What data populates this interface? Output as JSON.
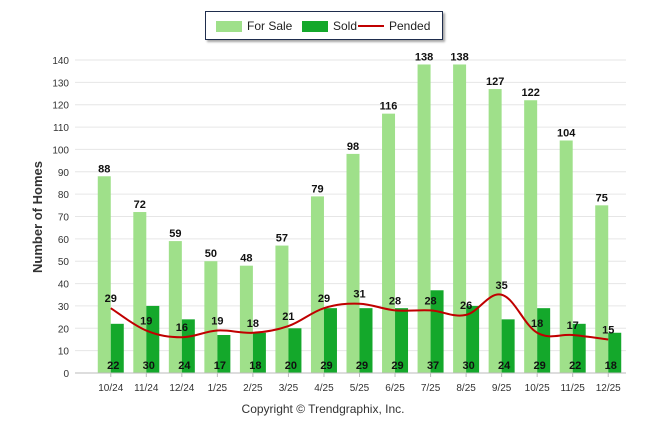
{
  "chart_data": {
    "type": "bar",
    "title": "",
    "xlabel": "",
    "ylabel": "Number of Homes",
    "ylim": [
      0,
      140
    ],
    "yticks": [
      0,
      10,
      20,
      30,
      40,
      50,
      60,
      70,
      80,
      90,
      100,
      110,
      120,
      130,
      140
    ],
    "categories": [
      "10/24",
      "11/24",
      "12/24",
      "1/25",
      "2/25",
      "3/25",
      "4/25",
      "5/25",
      "6/25",
      "7/25",
      "8/25",
      "9/25",
      "10/25",
      "11/25",
      "12/25"
    ],
    "series": [
      {
        "name": "For Sale",
        "kind": "bar",
        "color": "#9fe08a",
        "values": [
          88,
          72,
          59,
          50,
          48,
          57,
          79,
          98,
          116,
          138,
          138,
          127,
          122,
          104,
          75
        ]
      },
      {
        "name": "Sold",
        "kind": "bar",
        "color": "#14a82b",
        "values": [
          22,
          30,
          24,
          17,
          18,
          20,
          29,
          29,
          29,
          37,
          30,
          24,
          29,
          22,
          18
        ]
      },
      {
        "name": "Pended",
        "kind": "line",
        "color": "#c00000",
        "values": [
          29,
          19,
          16,
          19,
          18,
          21,
          29,
          31,
          28,
          28,
          26,
          35,
          18,
          17,
          15
        ]
      }
    ],
    "legend": "top-center"
  },
  "legend": {
    "for_sale": "For Sale",
    "sold": "Sold",
    "pended": "Pended"
  },
  "footer": {
    "copyright": "Copyright © Trendgraphix, Inc."
  }
}
